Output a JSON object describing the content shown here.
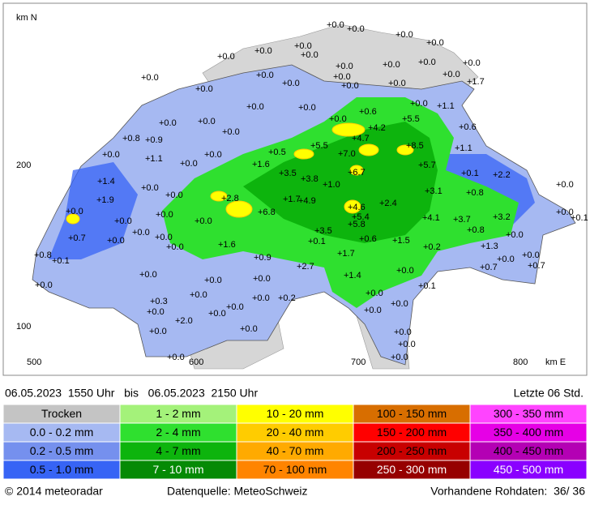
{
  "map": {
    "axis": {
      "y_labels": [
        "km N",
        "200",
        "100"
      ],
      "x_labels": [
        "500",
        "600",
        "700",
        "800",
        "km E"
      ]
    },
    "stations": [
      "+0.0",
      "+0.0",
      "+0.0",
      "+0.0",
      "+0.0",
      "+0.0",
      "+0.0",
      "+0.0",
      "+0.0",
      "+0.0",
      "+0.0",
      "+0.0",
      "+0.0",
      "+0.0",
      "+0.0",
      "+0.0",
      "+1.7",
      "+0.0",
      "+0.0",
      "+0.0",
      "+0.0",
      "+0.0",
      "+0.0",
      "+0.6",
      "+5.5",
      "+1.1",
      "+0.0",
      "+0.0",
      "+4.2",
      "+0.6",
      "+0.0",
      "+0.0",
      "+0.8",
      "+0.9",
      "+0.0",
      "+4.7",
      "+8.5",
      "+1.1",
      "+0.0",
      "+1.1",
      "+0.0",
      "+0.5",
      "+5.5",
      "+7.0",
      "+1.6",
      "+3.5",
      "+3.8",
      "+6.7",
      "+5.7",
      "+0.1",
      "+2.2",
      "+1.4",
      "+0.0",
      "+0.0",
      "+1.0",
      "+2.8",
      "+1.7",
      "+4.9",
      "+0.0",
      "+3.1",
      "+0.8",
      "+0.0",
      "+1.9",
      "+4.6",
      "+2.4",
      "+6.8",
      "+0.0",
      "+0.0",
      "+0.0",
      "+5.4",
      "+5.8",
      "+4.1",
      "+3.7",
      "+3.2",
      "+0.0",
      "+0.1",
      "+0.0",
      "+0.8",
      "+0.7",
      "+0.0",
      "+0.0",
      "+0.0",
      "+3.5",
      "+0.6",
      "+1.5",
      "+0.1",
      "+1.6",
      "+0.0",
      "+0.2",
      "+1.3",
      "+0.0",
      "+0.8",
      "+0.1",
      "+0.9",
      "+1.7",
      "+0.0",
      "+0.0",
      "+0.7",
      "+2.7",
      "+0.0",
      "+0.7",
      "+1.4",
      "+0.0",
      "+0.0",
      "+0.0",
      "+0.0",
      "+0.1",
      "+0.0",
      "+0.0",
      "+0.0",
      "+0.2",
      "+0.3",
      "+0.0",
      "+0.0",
      "+0.0",
      "+0.0",
      "+0.0",
      "+2.0",
      "+0.0",
      "+0.0",
      "+0.0",
      "+0.0",
      "+0.0",
      "+0.0"
    ]
  },
  "header": {
    "period": "06.05.2023  1550 Uhr   bis   06.05.2023  2150 Uhr",
    "window": "Letzte 06 Std."
  },
  "legend": [
    {
      "label": "Trocken",
      "color": "#c4c4c4"
    },
    {
      "label": "0.0 - 0.2 mm",
      "color": "#a6b9f2"
    },
    {
      "label": "0.2 - 0.5 mm",
      "color": "#7590ee"
    },
    {
      "label": "0.5 - 1.0 mm",
      "color": "#3764f5"
    },
    {
      "label": "1 - 2 mm",
      "color": "#a4f27a"
    },
    {
      "label": "2 - 4 mm",
      "color": "#2fe02f"
    },
    {
      "label": "4 - 7 mm",
      "color": "#0db40d"
    },
    {
      "label": "7 - 10 mm",
      "color": "#058a05"
    },
    {
      "label": "10 - 20 mm",
      "color": "#ffff00"
    },
    {
      "label": "20 - 40 mm",
      "color": "#ffcc00"
    },
    {
      "label": "40 - 70 mm",
      "color": "#ffaa00"
    },
    {
      "label": "70 - 100 mm",
      "color": "#ff8400"
    },
    {
      "label": "100 - 150 mm",
      "color": "#d86e00"
    },
    {
      "label": "150 - 200 mm",
      "color": "#ff0000"
    },
    {
      "label": "200 - 250 mm",
      "color": "#c80000"
    },
    {
      "label": "250 - 300 mm",
      "color": "#960000"
    },
    {
      "label": "300 - 350 mm",
      "color": "#ff44ff"
    },
    {
      "label": "350 - 400 mm",
      "color": "#e600e6"
    },
    {
      "label": "400 - 450 mm",
      "color": "#b400b4"
    },
    {
      "label": "450 - 500 mm",
      "color": "#8a00ff"
    }
  ],
  "footer": {
    "copyright": "© 2014 meteoradar",
    "source": "Datenquelle: MeteoSchweiz",
    "raw": "Vorhandene Rohdaten:  36/ 36"
  }
}
